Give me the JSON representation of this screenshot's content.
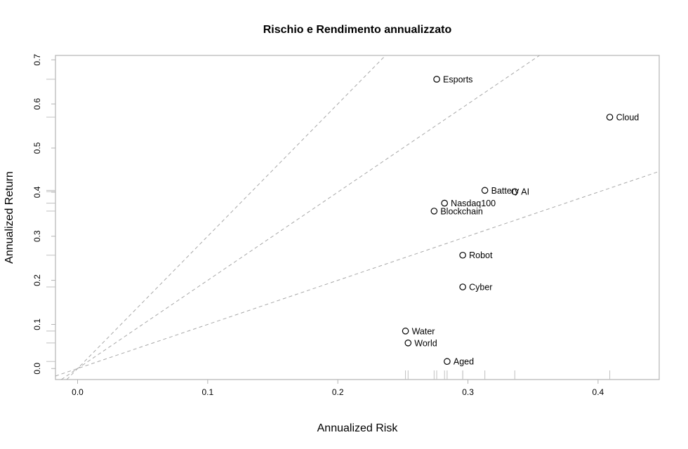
{
  "chart_data": {
    "type": "scatter",
    "title": "Rischio e Rendimento annualizzato",
    "xlabel": "Annualized Risk",
    "ylabel": "Annualized Return",
    "xlim": [
      -0.017,
      0.447
    ],
    "ylim": [
      -0.025,
      0.71
    ],
    "xticks": [
      0.0,
      0.1,
      0.2,
      0.3,
      0.4
    ],
    "yticks": [
      0.0,
      0.1,
      0.2,
      0.3,
      0.4,
      0.5,
      0.6,
      0.7
    ],
    "xtick_labels": [
      "0.0",
      "0.1",
      "0.2",
      "0.3",
      "0.4"
    ],
    "ytick_labels": [
      "0.0",
      "0.1",
      "0.2",
      "0.3",
      "0.4",
      "0.5",
      "0.6",
      "0.7"
    ],
    "reference_line_slopes": [
      1,
      2,
      3
    ],
    "rug": true,
    "grid": false,
    "points": [
      {
        "label": "Esports",
        "x": 0.276,
        "y": 0.656
      },
      {
        "label": "Cloud",
        "x": 0.409,
        "y": 0.57
      },
      {
        "label": "Battery",
        "x": 0.313,
        "y": 0.404
      },
      {
        "label": "AI",
        "x": 0.336,
        "y": 0.401
      },
      {
        "label": "Nasdaq100",
        "x": 0.282,
        "y": 0.375
      },
      {
        "label": "Blockchain",
        "x": 0.274,
        "y": 0.357
      },
      {
        "label": "Robot",
        "x": 0.296,
        "y": 0.257
      },
      {
        "label": "Cyber",
        "x": 0.296,
        "y": 0.185
      },
      {
        "label": "Water",
        "x": 0.252,
        "y": 0.085
      },
      {
        "label": "World",
        "x": 0.254,
        "y": 0.058
      },
      {
        "label": "Aged",
        "x": 0.284,
        "y": 0.016
      }
    ]
  }
}
